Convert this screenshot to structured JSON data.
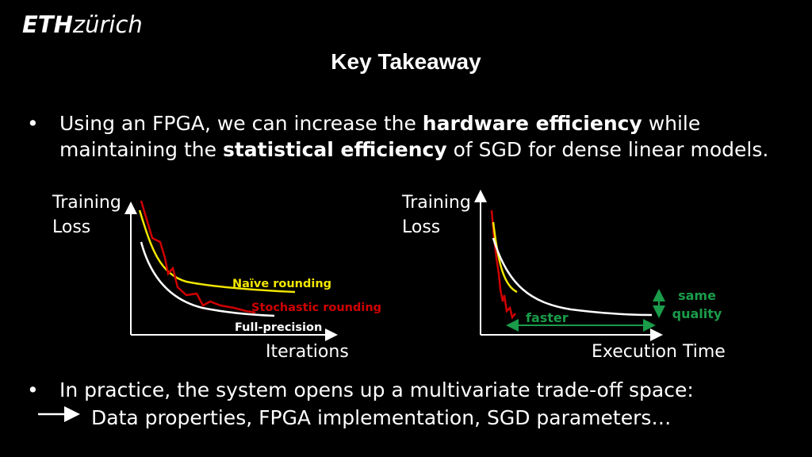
{
  "logo": {
    "bold": "ETH",
    "rest": "zürich"
  },
  "title": "Key Takeaway",
  "bullet1": {
    "parts": [
      "Using an FPGA, we can increase the ",
      "hardware efficiency",
      " while maintaining the ",
      "statistical efficiency",
      " of SGD for dense linear models."
    ]
  },
  "left_plot": {
    "y_label": [
      "Training",
      "Loss"
    ],
    "x_label": "Iterations",
    "curves": [
      "Naïve rounding",
      "Stochastic rounding",
      "Full-precision"
    ]
  },
  "right_plot": {
    "y_label": [
      "Training",
      "Loss"
    ],
    "x_label": "Execution Time",
    "faster": "faster",
    "same_quality": [
      "same",
      "quality"
    ]
  },
  "bullet2": "In practice, the system opens up a multivariate trade-off space:",
  "arrow_text": "Data properties, FPGA implementation, SGD parameters…"
}
